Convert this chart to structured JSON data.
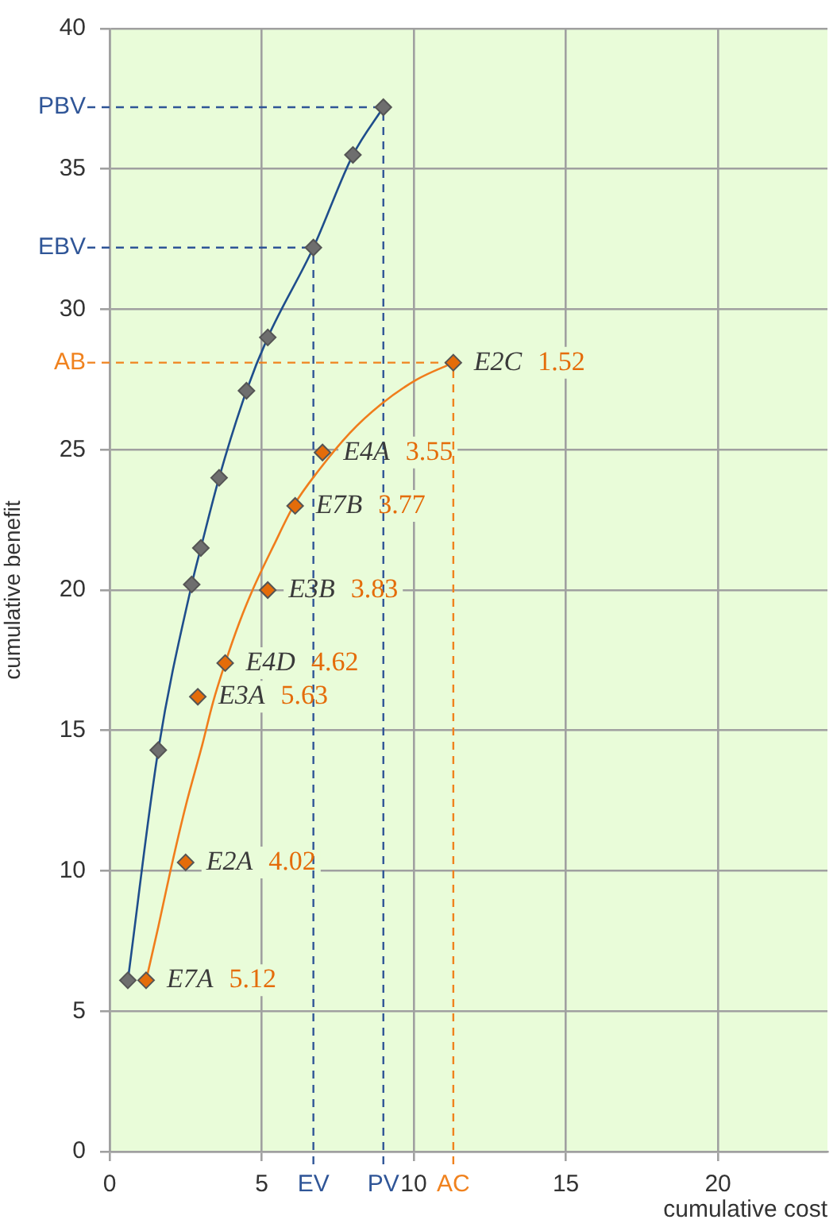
{
  "chart_data": {
    "type": "scatter",
    "xlabel": "cumulative cost",
    "ylabel": "cumulative benefit",
    "series": [
      {
        "type": "line",
        "color": "#1f4e8c",
        "colors": [
          "#6e6e6e",
          "#6e6e6e",
          "#6e6e6e",
          "#6e6e6e",
          "#6e6e6e",
          "#6e6e6e",
          "#6e6e6e",
          "#6e6e6e",
          "#6e6e6e",
          "#6e6e6e"
        ],
        "x": [
          0.6,
          1.6,
          2.7,
          3.0,
          3.6,
          4.5,
          5.2,
          6.7,
          8.0,
          9.0
        ],
        "values": [
          6.1,
          14.3,
          20.2,
          21.5,
          24.0,
          27.1,
          29.0,
          32.2,
          35.5,
          37.2
        ]
      },
      {
        "type": "line",
        "color": "#f07d1c",
        "marker": "none",
        "x": [
          1.2,
          1.6,
          2.0,
          2.5,
          3.05,
          3.4,
          3.8,
          4.25,
          4.7,
          5.4,
          6.05,
          6.9,
          7.9,
          8.9,
          10.1,
          11.3
        ],
        "values": [
          6.1,
          8.0,
          10.0,
          12.3,
          14.5,
          16.0,
          17.4,
          18.8,
          20.0,
          21.6,
          23.0,
          24.3,
          25.6,
          26.6,
          27.5,
          28.1
        ]
      },
      {
        "color": "#e46c0a",
        "x": [
          1.2,
          2.5,
          2.9,
          3.8,
          5.2,
          6.1,
          7.0,
          11.3
        ],
        "values": [
          6.1,
          10.3,
          16.2,
          17.4,
          20.0,
          23.0,
          24.9,
          28.1
        ]
      }
    ],
    "xlim": [
      0,
      23.6
    ],
    "ylim": [
      0,
      40
    ],
    "xticks": [
      0,
      5,
      10,
      15,
      20
    ],
    "yticks": [
      0,
      5,
      10,
      15,
      20,
      25,
      30,
      35,
      40
    ],
    "grid": true,
    "marker": "diamond",
    "ref_lines": [
      {
        "axis": "y",
        "value": 37.2,
        "label": "PBV",
        "color": "#2f5597",
        "line_style": "dashed"
      },
      {
        "axis": "x",
        "value": 9.0,
        "label": "PV",
        "color": "#2f5597",
        "line_style": "dashed"
      },
      {
        "axis": "y",
        "value": 32.2,
        "label": "EBV",
        "color": "#2f5597",
        "line_style": "dashed"
      },
      {
        "axis": "x",
        "value": 6.7,
        "label": "EV",
        "color": "#2f5597",
        "line_style": "dashed"
      },
      {
        "axis": "y",
        "value": 28.1,
        "label": "AB",
        "color": "#f0821e",
        "line_style": "dashed"
      },
      {
        "axis": "x",
        "value": 11.3,
        "label": "AC",
        "color": "#f0821e",
        "line_style": "dashed"
      }
    ],
    "annotations": [
      {
        "text": "E7A 5.12",
        "x": 1.2,
        "y": 6.1
      },
      {
        "text": "E2A 4.02",
        "x": 2.5,
        "y": 10.3
      },
      {
        "text": "E3A 5.63",
        "x": 2.9,
        "y": 16.2
      },
      {
        "text": "E4D 4.62",
        "x": 3.8,
        "y": 17.4
      },
      {
        "text": "E3B 3.83",
        "x": 5.2,
        "y": 20.0
      },
      {
        "text": "E7B 3.77",
        "x": 6.1,
        "y": 23.0
      },
      {
        "text": "E4A 3.55",
        "x": 7.0,
        "y": 24.9
      },
      {
        "text": "E2C 1.52",
        "x": 11.3,
        "y": 28.1
      }
    ]
  }
}
